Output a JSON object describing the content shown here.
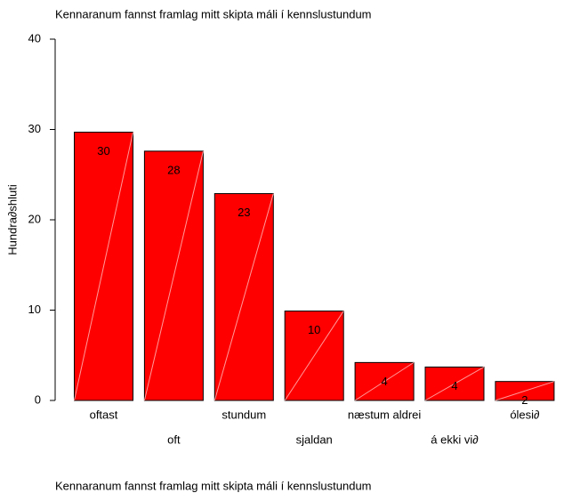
{
  "chart_data": {
    "type": "bar",
    "title": "Kennaranum fannst framlag mitt skipta máli í kennslustundum",
    "footnote": "Kennaranum fannst framlag mitt skipta máli í kennslustundum",
    "y_label": "Hundra∂shluti",
    "categories": [
      "oftast",
      "oft",
      "stundum",
      "sjaldan",
      "næstum aldrei",
      "á ekki vi∂",
      "ólesi∂"
    ],
    "values": [
      29.7,
      27.6,
      22.9,
      9.9,
      4.2,
      3.7,
      2.1
    ],
    "value_labels": [
      "30",
      "28",
      "23",
      "10",
      "4",
      "4",
      "2"
    ],
    "color": "#ff0000",
    "ylim": [
      0,
      40
    ],
    "yticks": [
      0,
      10,
      20,
      30,
      40
    ],
    "grid": false
  }
}
